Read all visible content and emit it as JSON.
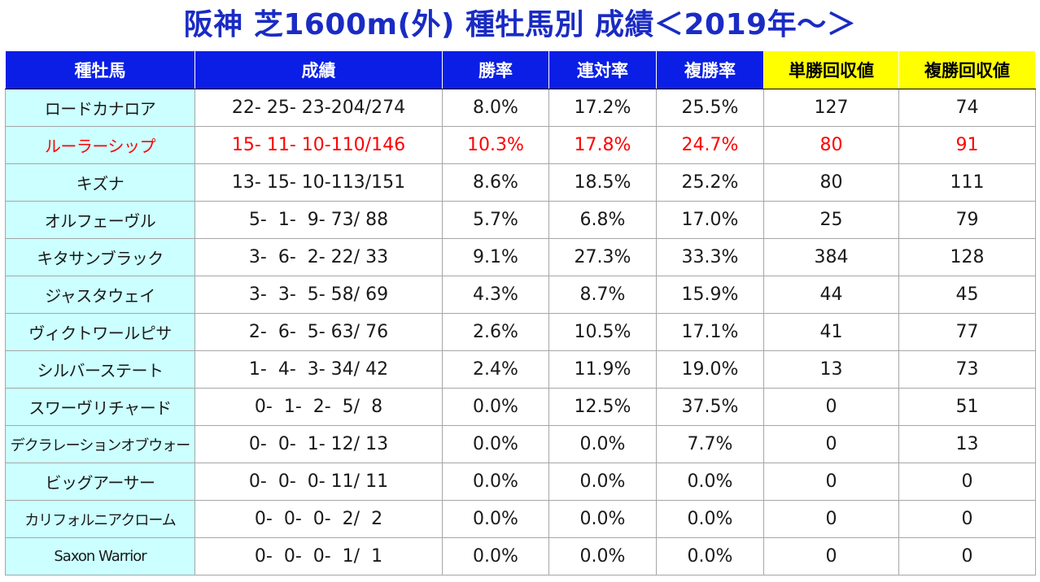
{
  "title": "阪神 芝1600m(外) 種牡馬別 成績＜2019年～＞",
  "colors": {
    "title": "#1a2bc4",
    "header_bg": "#0a1ee6",
    "header_highlight_bg": "#ffff00",
    "name_cell_bg": "#ccffff",
    "highlight_text": "#ff0000"
  },
  "table": {
    "headers": [
      "種牡馬",
      "成績",
      "勝率",
      "連対率",
      "複勝率",
      "単勝回収値",
      "複勝回収値"
    ],
    "rows": [
      {
        "name": "ロードカナロア",
        "record": "22- 25- 23-204/274",
        "win": "8.0%",
        "quinella": "17.2%",
        "show": "25.5%",
        "win_return": "127",
        "show_return": "74"
      },
      {
        "name": "ルーラーシップ",
        "record": "15- 11- 10-110/146",
        "win": "10.3%",
        "quinella": "17.8%",
        "show": "24.7%",
        "win_return": "80",
        "show_return": "91",
        "highlight": true
      },
      {
        "name": "キズナ",
        "record": "13- 15- 10-113/151",
        "win": "8.6%",
        "quinella": "18.5%",
        "show": "25.2%",
        "win_return": "80",
        "show_return": "111"
      },
      {
        "name": "オルフェーヴル",
        "record": "5-  1-  9- 73/ 88",
        "win": "5.7%",
        "quinella": "6.8%",
        "show": "17.0%",
        "win_return": "25",
        "show_return": "79"
      },
      {
        "name": "キタサンブラック",
        "record": "3-  6-  2- 22/ 33",
        "win": "9.1%",
        "quinella": "27.3%",
        "show": "33.3%",
        "win_return": "384",
        "show_return": "128"
      },
      {
        "name": "ジャスタウェイ",
        "record": "3-  3-  5- 58/ 69",
        "win": "4.3%",
        "quinella": "8.7%",
        "show": "15.9%",
        "win_return": "44",
        "show_return": "45"
      },
      {
        "name": "ヴィクトワールピサ",
        "record": "2-  6-  5- 63/ 76",
        "win": "2.6%",
        "quinella": "10.5%",
        "show": "17.1%",
        "win_return": "41",
        "show_return": "77"
      },
      {
        "name": "シルバーステート",
        "record": "1-  4-  3- 34/ 42",
        "win": "2.4%",
        "quinella": "11.9%",
        "show": "19.0%",
        "win_return": "13",
        "show_return": "73"
      },
      {
        "name": "スワーヴリチャード",
        "record": "0-  1-  2-  5/  8",
        "win": "0.0%",
        "quinella": "12.5%",
        "show": "37.5%",
        "win_return": "0",
        "show_return": "51"
      },
      {
        "name": "デクラレーションオブウォー",
        "record": "0-  0-  1- 12/ 13",
        "win": "0.0%",
        "quinella": "0.0%",
        "show": "7.7%",
        "win_return": "0",
        "show_return": "13"
      },
      {
        "name": "ビッグアーサー",
        "record": "0-  0-  0- 11/ 11",
        "win": "0.0%",
        "quinella": "0.0%",
        "show": "0.0%",
        "win_return": "0",
        "show_return": "0"
      },
      {
        "name": "カリフォルニアクローム",
        "record": "0-  0-  0-  2/  2",
        "win": "0.0%",
        "quinella": "0.0%",
        "show": "0.0%",
        "win_return": "0",
        "show_return": "0"
      },
      {
        "name": "Saxon Warrior",
        "record": "0-  0-  0-  1/  1",
        "win": "0.0%",
        "quinella": "0.0%",
        "show": "0.0%",
        "win_return": "0",
        "show_return": "0"
      }
    ]
  }
}
